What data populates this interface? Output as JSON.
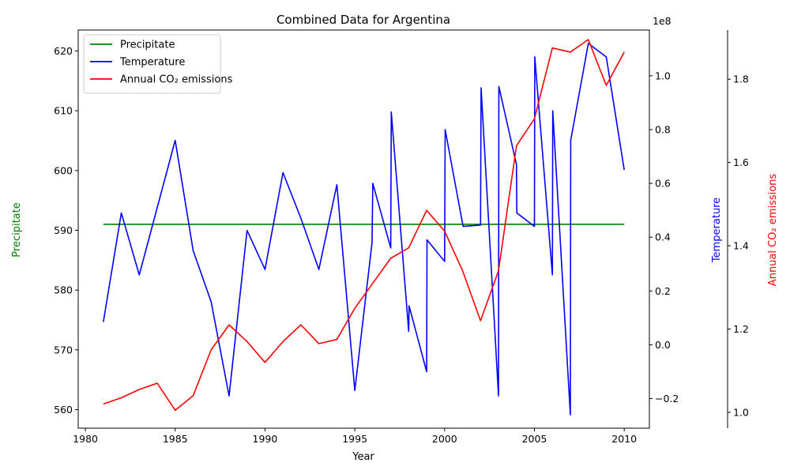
{
  "chart_data": {
    "type": "line",
    "title": "Combined Data for Argentina",
    "xlabel": "Year",
    "xlim": [
      1979.6,
      2011.4
    ],
    "x_ticks": [
      1980,
      1985,
      1990,
      1995,
      2000,
      2005,
      2010
    ],
    "axes": {
      "left": {
        "label": "Precipitate",
        "color": "#008000",
        "ylim": [
          556.9,
          623.5
        ],
        "ticks": [
          560,
          570,
          580,
          590,
          600,
          610,
          620
        ]
      },
      "right1": {
        "label": "Temperature",
        "color": "#0000ff",
        "ylim": [
          -0.31,
          1.17
        ],
        "ticks": [
          -0.2,
          0.0,
          0.2,
          0.4,
          0.6,
          0.8,
          1.0
        ],
        "tick_labels": [
          "−0.2",
          "0.0",
          "0.2",
          "0.4",
          "0.6",
          "0.8",
          "1.0"
        ],
        "offset_text": "1e8"
      },
      "right2": {
        "label": "Annual CO₂ emissions",
        "color": "#ff0000",
        "ylim": [
          0.962,
          1.918
        ],
        "ticks": [
          1.0,
          1.2,
          1.4,
          1.6,
          1.8
        ],
        "tick_labels": [
          "1.0",
          "1.2",
          "1.4",
          "1.6",
          "1.8"
        ]
      }
    },
    "legend_position": "upper-left",
    "series": [
      {
        "name": "Precipitate",
        "axis": "left",
        "color": "#008000",
        "points": [
          [
            1981,
            591
          ],
          [
            2010,
            591
          ]
        ]
      },
      {
        "name": "Temperature",
        "axis": "right1",
        "color": "#0000ff",
        "points": [
          [
            1981,
            0.085
          ],
          [
            1982,
            0.49
          ],
          [
            1983,
            0.26
          ],
          [
            1984,
            0.51
          ],
          [
            1985,
            0.76
          ],
          [
            1986,
            0.35
          ],
          [
            1987,
            0.16
          ],
          [
            1988,
            -0.19
          ],
          [
            1989,
            0.425
          ],
          [
            1990,
            0.28
          ],
          [
            1991,
            0.64
          ],
          [
            1992,
            0.47
          ],
          [
            1993,
            0.28
          ],
          [
            1994,
            0.595
          ],
          [
            1995,
            -0.17
          ],
          [
            1995.96,
            0.38
          ],
          [
            1996,
            0.6
          ],
          [
            1997,
            0.36
          ],
          [
            1997.03,
            0.865
          ],
          [
            1998,
            0.05
          ],
          [
            1998.02,
            0.145
          ],
          [
            1999,
            -0.1
          ],
          [
            1999.02,
            0.39
          ],
          [
            2000,
            0.31
          ],
          [
            2000.03,
            0.8
          ],
          [
            2001,
            0.45
          ],
          [
            2001.03,
            0.44
          ],
          [
            2002,
            0.445
          ],
          [
            2002.03,
            0.955
          ],
          [
            2003,
            -0.19
          ],
          [
            2003.02,
            0.96
          ],
          [
            2004,
            0.67
          ],
          [
            2004.02,
            0.49
          ],
          [
            2005,
            0.44
          ],
          [
            2005.02,
            1.07
          ],
          [
            2006,
            0.26
          ],
          [
            2006.02,
            0.87
          ],
          [
            2007,
            -0.26
          ],
          [
            2007.02,
            0.76
          ],
          [
            2008,
            1.12
          ],
          [
            2009,
            1.07
          ],
          [
            2010,
            0.65
          ]
        ]
      },
      {
        "name": "Annual CO₂ emissions",
        "axis": "right2",
        "color": "#ff0000",
        "points": [
          [
            1981,
            1.02
          ],
          [
            1982,
            1.035
          ],
          [
            1983,
            1.055
          ],
          [
            1984,
            1.07
          ],
          [
            1985,
            1.005
          ],
          [
            1986,
            1.04
          ],
          [
            1987,
            1.15
          ],
          [
            1988,
            1.21
          ],
          [
            1989,
            1.17
          ],
          [
            1990,
            1.12
          ],
          [
            1991,
            1.17
          ],
          [
            1992,
            1.21
          ],
          [
            1993,
            1.165
          ],
          [
            1994,
            1.175
          ],
          [
            1995,
            1.25
          ],
          [
            1996,
            1.31
          ],
          [
            1997,
            1.37
          ],
          [
            1998,
            1.395
          ],
          [
            1999,
            1.485
          ],
          [
            2000,
            1.435
          ],
          [
            2001,
            1.34
          ],
          [
            2002,
            1.22
          ],
          [
            2003,
            1.34
          ],
          [
            2004,
            1.64
          ],
          [
            2005,
            1.705
          ],
          [
            2006,
            1.875
          ],
          [
            2007,
            1.865
          ],
          [
            2008,
            1.895
          ],
          [
            2009,
            1.785
          ],
          [
            2010,
            1.865
          ]
        ]
      }
    ]
  }
}
